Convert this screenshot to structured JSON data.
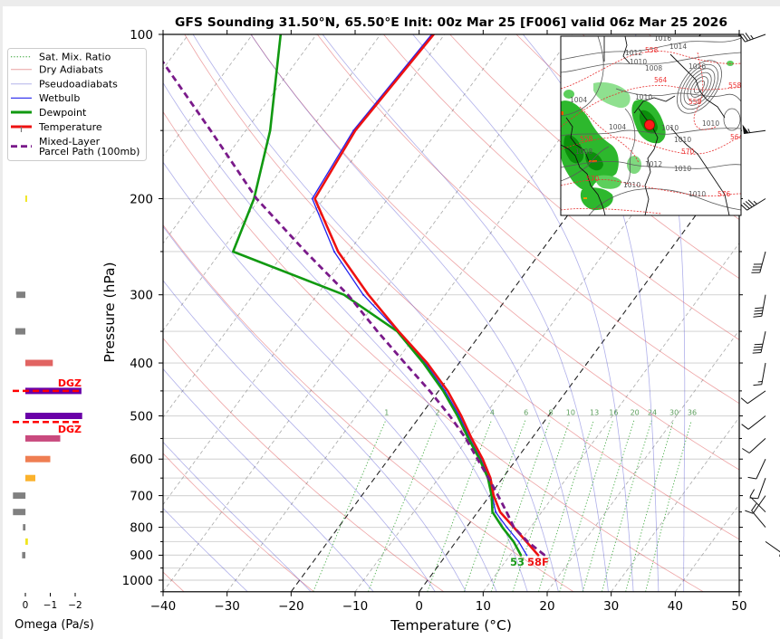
{
  "legend": {
    "placement": "upper-left",
    "items": [
      {
        "label": "Sat. Mix. Ratio",
        "color": "#2ca02c"
      },
      {
        "label": "Dry Adiabats",
        "color": "#e8a0a0"
      },
      {
        "label": "Pseudoadiabats",
        "color": "#b4b4ea"
      },
      {
        "label": "Wetbulb",
        "color": "#2222ee"
      },
      {
        "label": "Dewpoint",
        "color": "#119911"
      },
      {
        "label": "Temperature",
        "color": "#ee1111"
      },
      {
        "label": "Mixed-Layer",
        "label_line2": "Parcel Path (100mb)",
        "color": "#7a1a8a"
      }
    ]
  },
  "chart_data": {
    "type": "line",
    "title": "GFS Sounding 31.50°N, 65.50°E Init: 00z Mar 25 [F006] valid 06z Mar 25 2026",
    "xlabel": "Temperature (°C)",
    "ylabel": "Pressure (hPa)",
    "xlim": [
      -40,
      50
    ],
    "ylim": [
      1050,
      100
    ],
    "y_scale": "log",
    "grid": true,
    "x_ticks": [
      -40,
      -30,
      -20,
      -10,
      0,
      10,
      20,
      30,
      40,
      50
    ],
    "x_tick_labels": [
      "−40",
      "−30",
      "−20",
      "−10",
      "0",
      "10",
      "20",
      "30",
      "40",
      "50"
    ],
    "y_ticks": [
      100,
      200,
      300,
      400,
      500,
      600,
      700,
      800,
      900,
      1000
    ],
    "y_tick_labels": [
      "100",
      "200",
      "300",
      "400",
      "500",
      "600",
      "700",
      "800",
      "900",
      "1000"
    ],
    "pressure_hPa": [
      900,
      850,
      800,
      750,
      700,
      650,
      600,
      550,
      500,
      450,
      400,
      350,
      300,
      250,
      200,
      150,
      100
    ],
    "series": [
      {
        "name": "Wetbulb",
        "color": "#2222ee",
        "style": "solid",
        "values": [
          12.6,
          9.8,
          6.3,
          2.8,
          0.4,
          -2.1,
          -5.6,
          -9.7,
          -13.9,
          -19.0,
          -25.3,
          -33.2,
          -42.8,
          -52.3,
          -61.8,
          -63.2,
          -62.0
        ]
      },
      {
        "name": "Dewpoint",
        "color": "#119911",
        "style": "solid",
        "values": [
          11.7,
          9.0,
          5.6,
          2.3,
          0.3,
          -2.3,
          -5.8,
          -9.9,
          -14.2,
          -19.3,
          -25.6,
          -33.3,
          -45.8,
          -68.1,
          -70.9,
          -76.2,
          -85.6
        ]
      },
      {
        "name": "Temperature",
        "color": "#ee1111",
        "style": "solid",
        "values": [
          14.4,
          11.0,
          7.4,
          3.5,
          0.6,
          -1.9,
          -5.3,
          -9.4,
          -13.6,
          -18.6,
          -25.0,
          -33.1,
          -42.0,
          -51.7,
          -61.4,
          -62.9,
          -61.7
        ]
      },
      {
        "name": "Parcel Path (100mb)",
        "color": "#7a1a8a",
        "style": "dashed",
        "values": [
          15.4,
          11.2,
          7.4,
          4.5,
          1.3,
          -2.2,
          -6.1,
          -10.3,
          -15.4,
          -21.4,
          -28.5,
          -36.4,
          -45.2,
          -56.8,
          -70.5,
          -85.5,
          -107.0
        ]
      }
    ],
    "highlighted_isotherms_c": [
      -20,
      0
    ],
    "dry_adiabats_theta_c": [
      -40,
      -20,
      0,
      20,
      40,
      60,
      80,
      100,
      120,
      140,
      160,
      180,
      200
    ],
    "moist_adiabats_t0_c": [
      -30,
      -20,
      -10,
      0,
      5,
      10,
      15,
      20,
      24,
      28,
      32,
      36,
      40
    ],
    "mixing_ratio_lines_gkg": [
      1,
      2,
      4,
      6,
      8,
      10,
      13,
      16,
      20,
      24,
      30,
      36
    ],
    "mixing_ratio_labels": [
      "1",
      "2",
      "4",
      "6",
      "8",
      "10",
      "13",
      "16",
      "20",
      "24",
      "30",
      "36"
    ],
    "surface_labels": {
      "dewpoint": "53",
      "temperature": "58F"
    }
  },
  "omega_panel": {
    "xlabel": "Omega (Pa/s)",
    "ticks": [
      0,
      -1,
      -2
    ],
    "tick_labels": [
      "0",
      "−1",
      "−2"
    ],
    "bars": [
      {
        "hPa": 200,
        "value": -0.07,
        "color": "#f0e51f"
      },
      {
        "hPa": 300,
        "value": 0.36,
        "color": "#808080"
      },
      {
        "hPa": 350,
        "value": 0.4,
        "color": "#808080"
      },
      {
        "hPa": 400,
        "value": -1.1,
        "color": "#e16462"
      },
      {
        "hPa": 450,
        "value": -2.25,
        "color": "#6a00a8"
      },
      {
        "hPa": 500,
        "value": -2.28,
        "color": "#6a00a8"
      },
      {
        "hPa": 550,
        "value": -1.4,
        "color": "#c94a7e"
      },
      {
        "hPa": 600,
        "value": -1.0,
        "color": "#ef7e52"
      },
      {
        "hPa": 650,
        "value": -0.4,
        "color": "#fbb22c"
      },
      {
        "hPa": 700,
        "value": 0.5,
        "color": "#808080"
      },
      {
        "hPa": 750,
        "value": 0.5,
        "color": "#808080"
      },
      {
        "hPa": 800,
        "value": 0.1,
        "color": "#808080"
      },
      {
        "hPa": 850,
        "value": -0.1,
        "color": "#f0e51f"
      },
      {
        "hPa": 900,
        "value": 0.13,
        "color": "#808080"
      }
    ],
    "dgz": {
      "label": "DGZ",
      "top_hPa": 450,
      "bottom_hPa": 513,
      "color": "#ff0000"
    }
  },
  "wind_barbs": [
    {
      "hPa": 100,
      "dir": 250,
      "kt": 35
    },
    {
      "hPa": 150,
      "dir": 262,
      "kt": 55
    },
    {
      "hPa": 200,
      "dir": 238,
      "kt": 45
    },
    {
      "hPa": 250,
      "dir": 195,
      "kt": 40
    },
    {
      "hPa": 300,
      "dir": 190,
      "kt": 40
    },
    {
      "hPa": 350,
      "dir": 192,
      "kt": 40
    },
    {
      "hPa": 400,
      "dir": 190,
      "kt": 15
    },
    {
      "hPa": 450,
      "dir": 235,
      "kt": 10
    },
    {
      "hPa": 500,
      "dir": 232,
      "kt": 10
    },
    {
      "hPa": 550,
      "dir": 228,
      "kt": 10
    },
    {
      "hPa": 600,
      "dir": 205,
      "kt": 10
    },
    {
      "hPa": 650,
      "dir": 200,
      "kt": 10
    },
    {
      "hPa": 700,
      "dir": 215,
      "kt": 10
    },
    {
      "hPa": 750,
      "dir": 315,
      "kt": 10
    },
    {
      "hPa": 800,
      "dir": 320,
      "kt": 10
    },
    {
      "hPa": 850,
      "dir": 125,
      "kt": 5
    }
  ],
  "inset_map": {
    "isobar_labels": [
      "1016",
      "1014",
      "1012",
      "1010",
      "1008",
      "1016",
      "1004",
      "1010",
      "1004",
      "1010",
      "1010",
      "1010",
      "1008",
      "1012",
      "1010",
      "1010",
      "1010"
    ],
    "height_labels": [
      "558",
      "564",
      "558",
      "558",
      "558",
      "570",
      "564",
      "570",
      "576"
    ],
    "marker_color": "#ff1a1a"
  }
}
